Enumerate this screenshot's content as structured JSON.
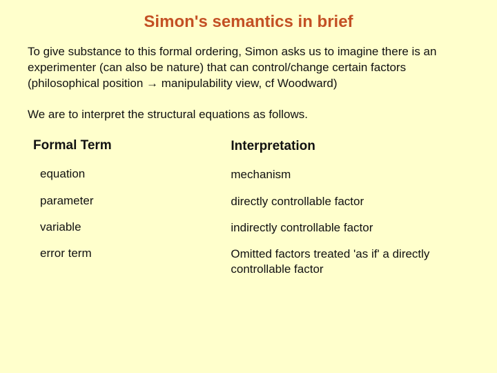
{
  "title": "Simon's semantics in brief",
  "paragraphs": {
    "p1": "To give substance to this formal ordering, Simon asks us to imagine there is an experimenter (can also be nature) that can control/change certain factors (philosophical position → manipulability view, cf Woodward)",
    "p2": "We are to interpret the structural equations as follows."
  },
  "table": {
    "columns": {
      "left": "Formal Term",
      "right": "Interpretation"
    },
    "rows": [
      {
        "term": "equation",
        "interpretation": "mechanism"
      },
      {
        "term": "parameter",
        "interpretation": "directly controllable factor"
      },
      {
        "term": "variable",
        "interpretation": "indirectly controllable factor"
      },
      {
        "term": "error term",
        "interpretation": "Omitted factors treated 'as if' a directly controllable factor"
      }
    ]
  },
  "colors": {
    "background": "#ffffcc",
    "title": "#c35024",
    "text": "#111111"
  },
  "typography": {
    "title_fontsize": 24,
    "body_fontsize": 17,
    "header_fontsize": 19,
    "font_family": "Verdana"
  }
}
